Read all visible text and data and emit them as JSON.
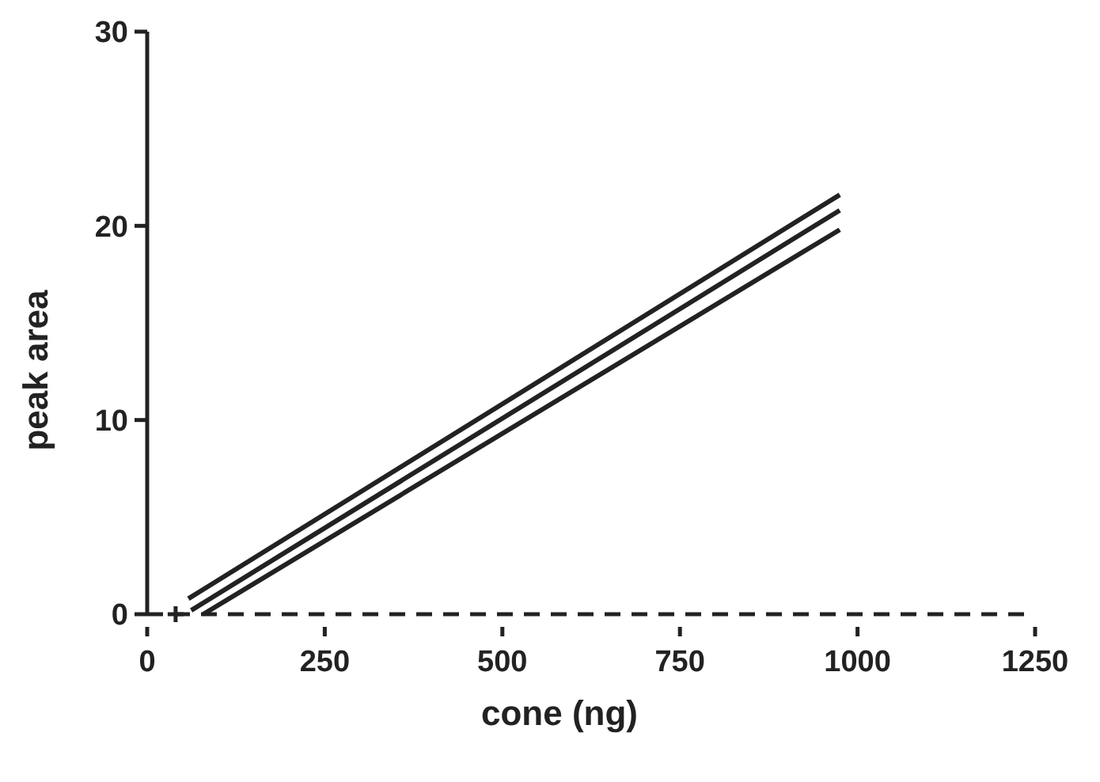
{
  "chart_data": {
    "type": "line",
    "xlabel": "cone (ng)",
    "ylabel": "peak area",
    "xlim": [
      0,
      1250
    ],
    "xticks": [
      0,
      250,
      500,
      750,
      1000,
      1250
    ],
    "ylim": [
      0,
      30
    ],
    "yticks": [
      0,
      10,
      20,
      30
    ],
    "series": [
      {
        "color": "#222222",
        "x": [
          58,
          975
        ],
        "values": [
          0.8,
          21.6
        ]
      },
      {
        "color": "#222222",
        "x": [
          62,
          975
        ],
        "values": [
          0.2,
          20.8
        ]
      },
      {
        "color": "#222222",
        "x": [
          79,
          975
        ],
        "values": [
          0,
          19.8
        ]
      },
      {
        "type": "scatter",
        "marker": "cross",
        "color": "#222222",
        "x": [
          40
        ],
        "values": [
          0
        ]
      }
    ],
    "ref_lines": [
      {
        "axis": "y",
        "value": 0,
        "line_style": "dashed",
        "color": "#222222"
      }
    ]
  }
}
